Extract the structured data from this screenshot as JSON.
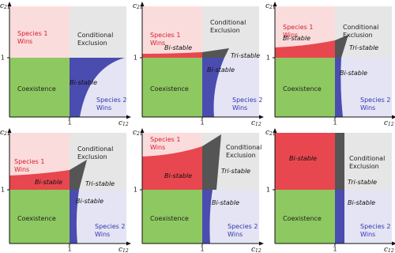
{
  "panels": [
    {
      "x_axis": {
        "symbol": "c",
        "subscript": "12"
      },
      "y_axis": {
        "symbol": "c",
        "subscript": "21"
      },
      "x_tick": "1",
      "y_tick": "1",
      "labels": [
        [
          "Species 1",
          "Wins"
        ],
        [
          "Conditional",
          "Exclusion"
        ],
        [
          "Coexistence"
        ],
        [
          "Species 2",
          "Wins"
        ],
        [
          "Bi-stable"
        ]
      ]
    },
    {
      "x_axis": {
        "symbol": "c",
        "subscript": "12"
      },
      "y_axis": {
        "symbol": "c",
        "subscript": "21"
      },
      "x_tick": "1",
      "y_tick": "1",
      "labels": [
        [
          "Species 1",
          "Wins"
        ],
        [
          "Conditional",
          "Exclusion"
        ],
        [
          "Bi-stable"
        ],
        [
          "Tri-stable"
        ],
        [
          "Coexistence"
        ],
        [
          "Bi-stable"
        ],
        [
          "Species 2",
          "Wins"
        ]
      ]
    },
    {
      "x_axis": {
        "symbol": "c",
        "subscript": "12"
      },
      "y_axis": {
        "symbol": "c",
        "subscript": "21"
      },
      "x_tick": "1",
      "y_tick": "1",
      "labels": [
        [
          "Species 1",
          "Wins"
        ],
        [
          "Conditional",
          "Exclusion"
        ],
        [
          "Bi-stable"
        ],
        [
          "Tri-stable"
        ],
        [
          "Coexistence"
        ],
        [
          "Bi-stable"
        ],
        [
          "Species 2",
          "Wins"
        ]
      ]
    },
    {
      "x_axis": {
        "symbol": "c",
        "subscript": "12"
      },
      "y_axis": {
        "symbol": "c",
        "subscript": "21"
      },
      "x_tick": "1",
      "y_tick": "1",
      "labels": [
        [
          "Species 1",
          "Wins"
        ],
        [
          "Conditional",
          "Exclusion"
        ],
        [
          "Bi-stable"
        ],
        [
          "Tri-stable"
        ],
        [
          "Coexistence"
        ],
        [
          "Bi-stable"
        ],
        [
          "Species 2",
          "Wins"
        ]
      ]
    },
    {
      "x_axis": {
        "symbol": "c",
        "subscript": "12"
      },
      "y_axis": {
        "symbol": "c",
        "subscript": "21"
      },
      "x_tick": "1",
      "y_tick": "1",
      "labels": [
        [
          "Species 1",
          "Wins"
        ],
        [
          "Conditional",
          "Exclusion"
        ],
        [
          "Bi-stable"
        ],
        [
          "Tri-stable"
        ],
        [
          "Coexistence"
        ],
        [
          "Bi-stable"
        ],
        [
          "Species 2",
          "Wins"
        ]
      ]
    },
    {
      "x_axis": {
        "symbol": "c",
        "subscript": "12"
      },
      "y_axis": {
        "symbol": "c",
        "subscript": "21"
      },
      "x_tick": "1",
      "y_tick": "1",
      "labels": [
        [
          "Bi-stable"
        ],
        [
          "Conditional",
          "Exclusion"
        ],
        [
          "Tri-stable"
        ],
        [
          "Coexistence"
        ],
        [
          "Bi-stable"
        ],
        [
          "Species 2",
          "Wins"
        ]
      ]
    }
  ]
}
